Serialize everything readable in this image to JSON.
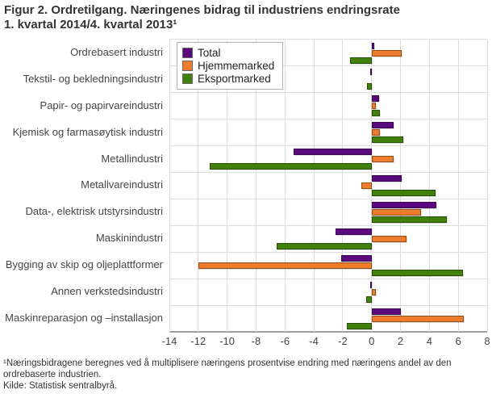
{
  "title": {
    "line1": "Figur 2. Ordretilgang. Næringenes bidrag til industriens endringsrate",
    "line2": "1. kvartal 2014/4. kvartal 2013¹"
  },
  "footnotes": {
    "line1": "¹Næringsbidragene beregnes ved å multiplisere næringens prosentvise endring med næringens andel av den",
    "line2": "ordrebaserte industrien.",
    "line3": "Kilde: Statistisk sentralbyrå."
  },
  "colors": {
    "total": "#5C0980",
    "hjemmemarked": "#ED7D2B",
    "eksportmarked": "#41800C",
    "grid": "#dcdcdc",
    "axis": "#9e9e9e"
  },
  "chart_data": {
    "type": "bar",
    "orientation": "horizontal",
    "title": "Figur 2. Ordretilgang. Næringenes bidrag til industriens endringsrate 1. kvartal 2014/4. kvartal 2013¹",
    "categories": [
      "Ordrebasert industri",
      "Tekstil- og bekledningsindustri",
      "Papir- og papirvareindustri",
      "Kjemisk og farmasøytisk industri",
      "Metallindustri",
      "Metallvareindustri",
      "Data-, elektrisk utstyrsindustri",
      "Maskinindustri",
      "Bygging av skip og oljeplattformer",
      "Annen verkstedsindustri",
      "Maskinreparasjon og –installasjon"
    ],
    "series": [
      {
        "name": "Total",
        "color": "#5C0980",
        "values": [
          0.2,
          -0.1,
          0.5,
          1.5,
          -5.4,
          2.1,
          4.5,
          -2.5,
          -2.1,
          -0.1,
          2.0
        ]
      },
      {
        "name": "Hjemmemarked",
        "color": "#ED7D2B",
        "values": [
          2.1,
          0.0,
          0.3,
          0.6,
          1.5,
          -0.7,
          3.4,
          2.4,
          -12.0,
          0.3,
          6.4
        ]
      },
      {
        "name": "Eksportmarked",
        "color": "#41800C",
        "values": [
          -1.5,
          -0.3,
          0.6,
          2.2,
          -11.2,
          4.4,
          5.2,
          -6.6,
          6.3,
          -0.4,
          -1.7
        ]
      }
    ],
    "xlim": [
      -14,
      8
    ],
    "xticks": [
      -14,
      -12,
      -10,
      -8,
      -6,
      -4,
      -2,
      0,
      2,
      4,
      6,
      8
    ],
    "grid": true,
    "legend_position": "top-left"
  }
}
